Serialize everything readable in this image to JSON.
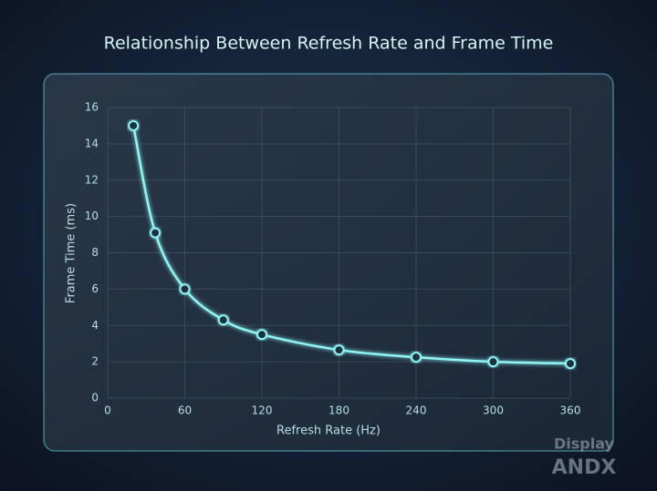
{
  "chart_data": {
    "type": "line",
    "title": "Relationship Between Refresh Rate and Frame Time",
    "x_label": "Refresh Rate (Hz)",
    "y_label": "Frame Time (ms)",
    "x": [
      20,
      37,
      60,
      90,
      120,
      180,
      240,
      300,
      360
    ],
    "series": [
      {
        "name": "Frame Time",
        "color": "#8ff6f8",
        "values": [
          15,
          9.1,
          6,
          4.3,
          3.5,
          2.65,
          2.25,
          2,
          1.9
        ]
      }
    ],
    "xlim": [
      0,
      360
    ],
    "xticks": [
      0,
      60,
      120,
      180,
      240,
      300,
      360
    ],
    "ylim": [
      0,
      16
    ],
    "yticks": [
      0,
      2,
      4,
      6,
      8,
      10,
      12,
      14,
      16
    ],
    "grid": true,
    "watermark": [
      "Display",
      "ANDX"
    ]
  }
}
